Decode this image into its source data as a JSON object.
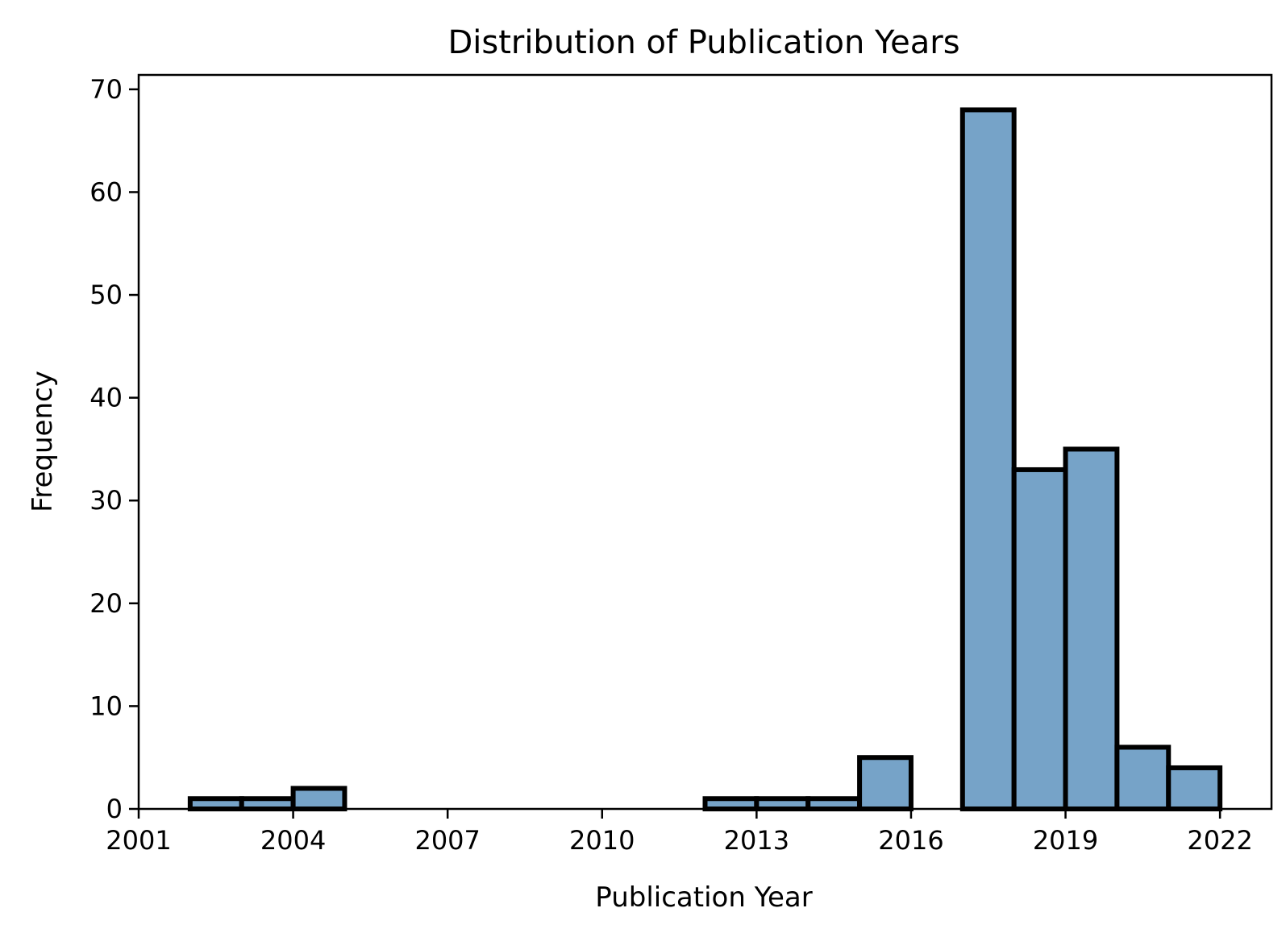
{
  "chart_data": {
    "type": "bar",
    "title": "Distribution of Publication Years",
    "xlabel": "Publication Year",
    "ylabel": "Frequency",
    "bins": [
      {
        "start": 2002,
        "end": 2003,
        "value": 1
      },
      {
        "start": 2003,
        "end": 2004,
        "value": 1
      },
      {
        "start": 2004,
        "end": 2005,
        "value": 2
      },
      {
        "start": 2005,
        "end": 2006,
        "value": 0
      },
      {
        "start": 2006,
        "end": 2007,
        "value": 0
      },
      {
        "start": 2007,
        "end": 2008,
        "value": 0
      },
      {
        "start": 2008,
        "end": 2009,
        "value": 0
      },
      {
        "start": 2009,
        "end": 2010,
        "value": 0
      },
      {
        "start": 2010,
        "end": 2011,
        "value": 0
      },
      {
        "start": 2011,
        "end": 2012,
        "value": 0
      },
      {
        "start": 2012,
        "end": 2013,
        "value": 1
      },
      {
        "start": 2013,
        "end": 2014,
        "value": 1
      },
      {
        "start": 2014,
        "end": 2015,
        "value": 1
      },
      {
        "start": 2015,
        "end": 2016,
        "value": 5
      },
      {
        "start": 2016,
        "end": 2017,
        "value": 0
      },
      {
        "start": 2017,
        "end": 2018,
        "value": 68
      },
      {
        "start": 2018,
        "end": 2019,
        "value": 33
      },
      {
        "start": 2019,
        "end": 2020,
        "value": 35
      },
      {
        "start": 2020,
        "end": 2021,
        "value": 6
      },
      {
        "start": 2021,
        "end": 2022,
        "value": 4
      }
    ],
    "xlim": [
      2001,
      2023
    ],
    "ylim": [
      0,
      71.4
    ],
    "xticks": [
      2001,
      2004,
      2007,
      2010,
      2013,
      2016,
      2019,
      2022
    ],
    "yticks": [
      0,
      10,
      20,
      30,
      40,
      50,
      60,
      70
    ],
    "bar_color": "#76A3C8",
    "edge_color": "#000000",
    "grid": false,
    "legend": "none"
  }
}
